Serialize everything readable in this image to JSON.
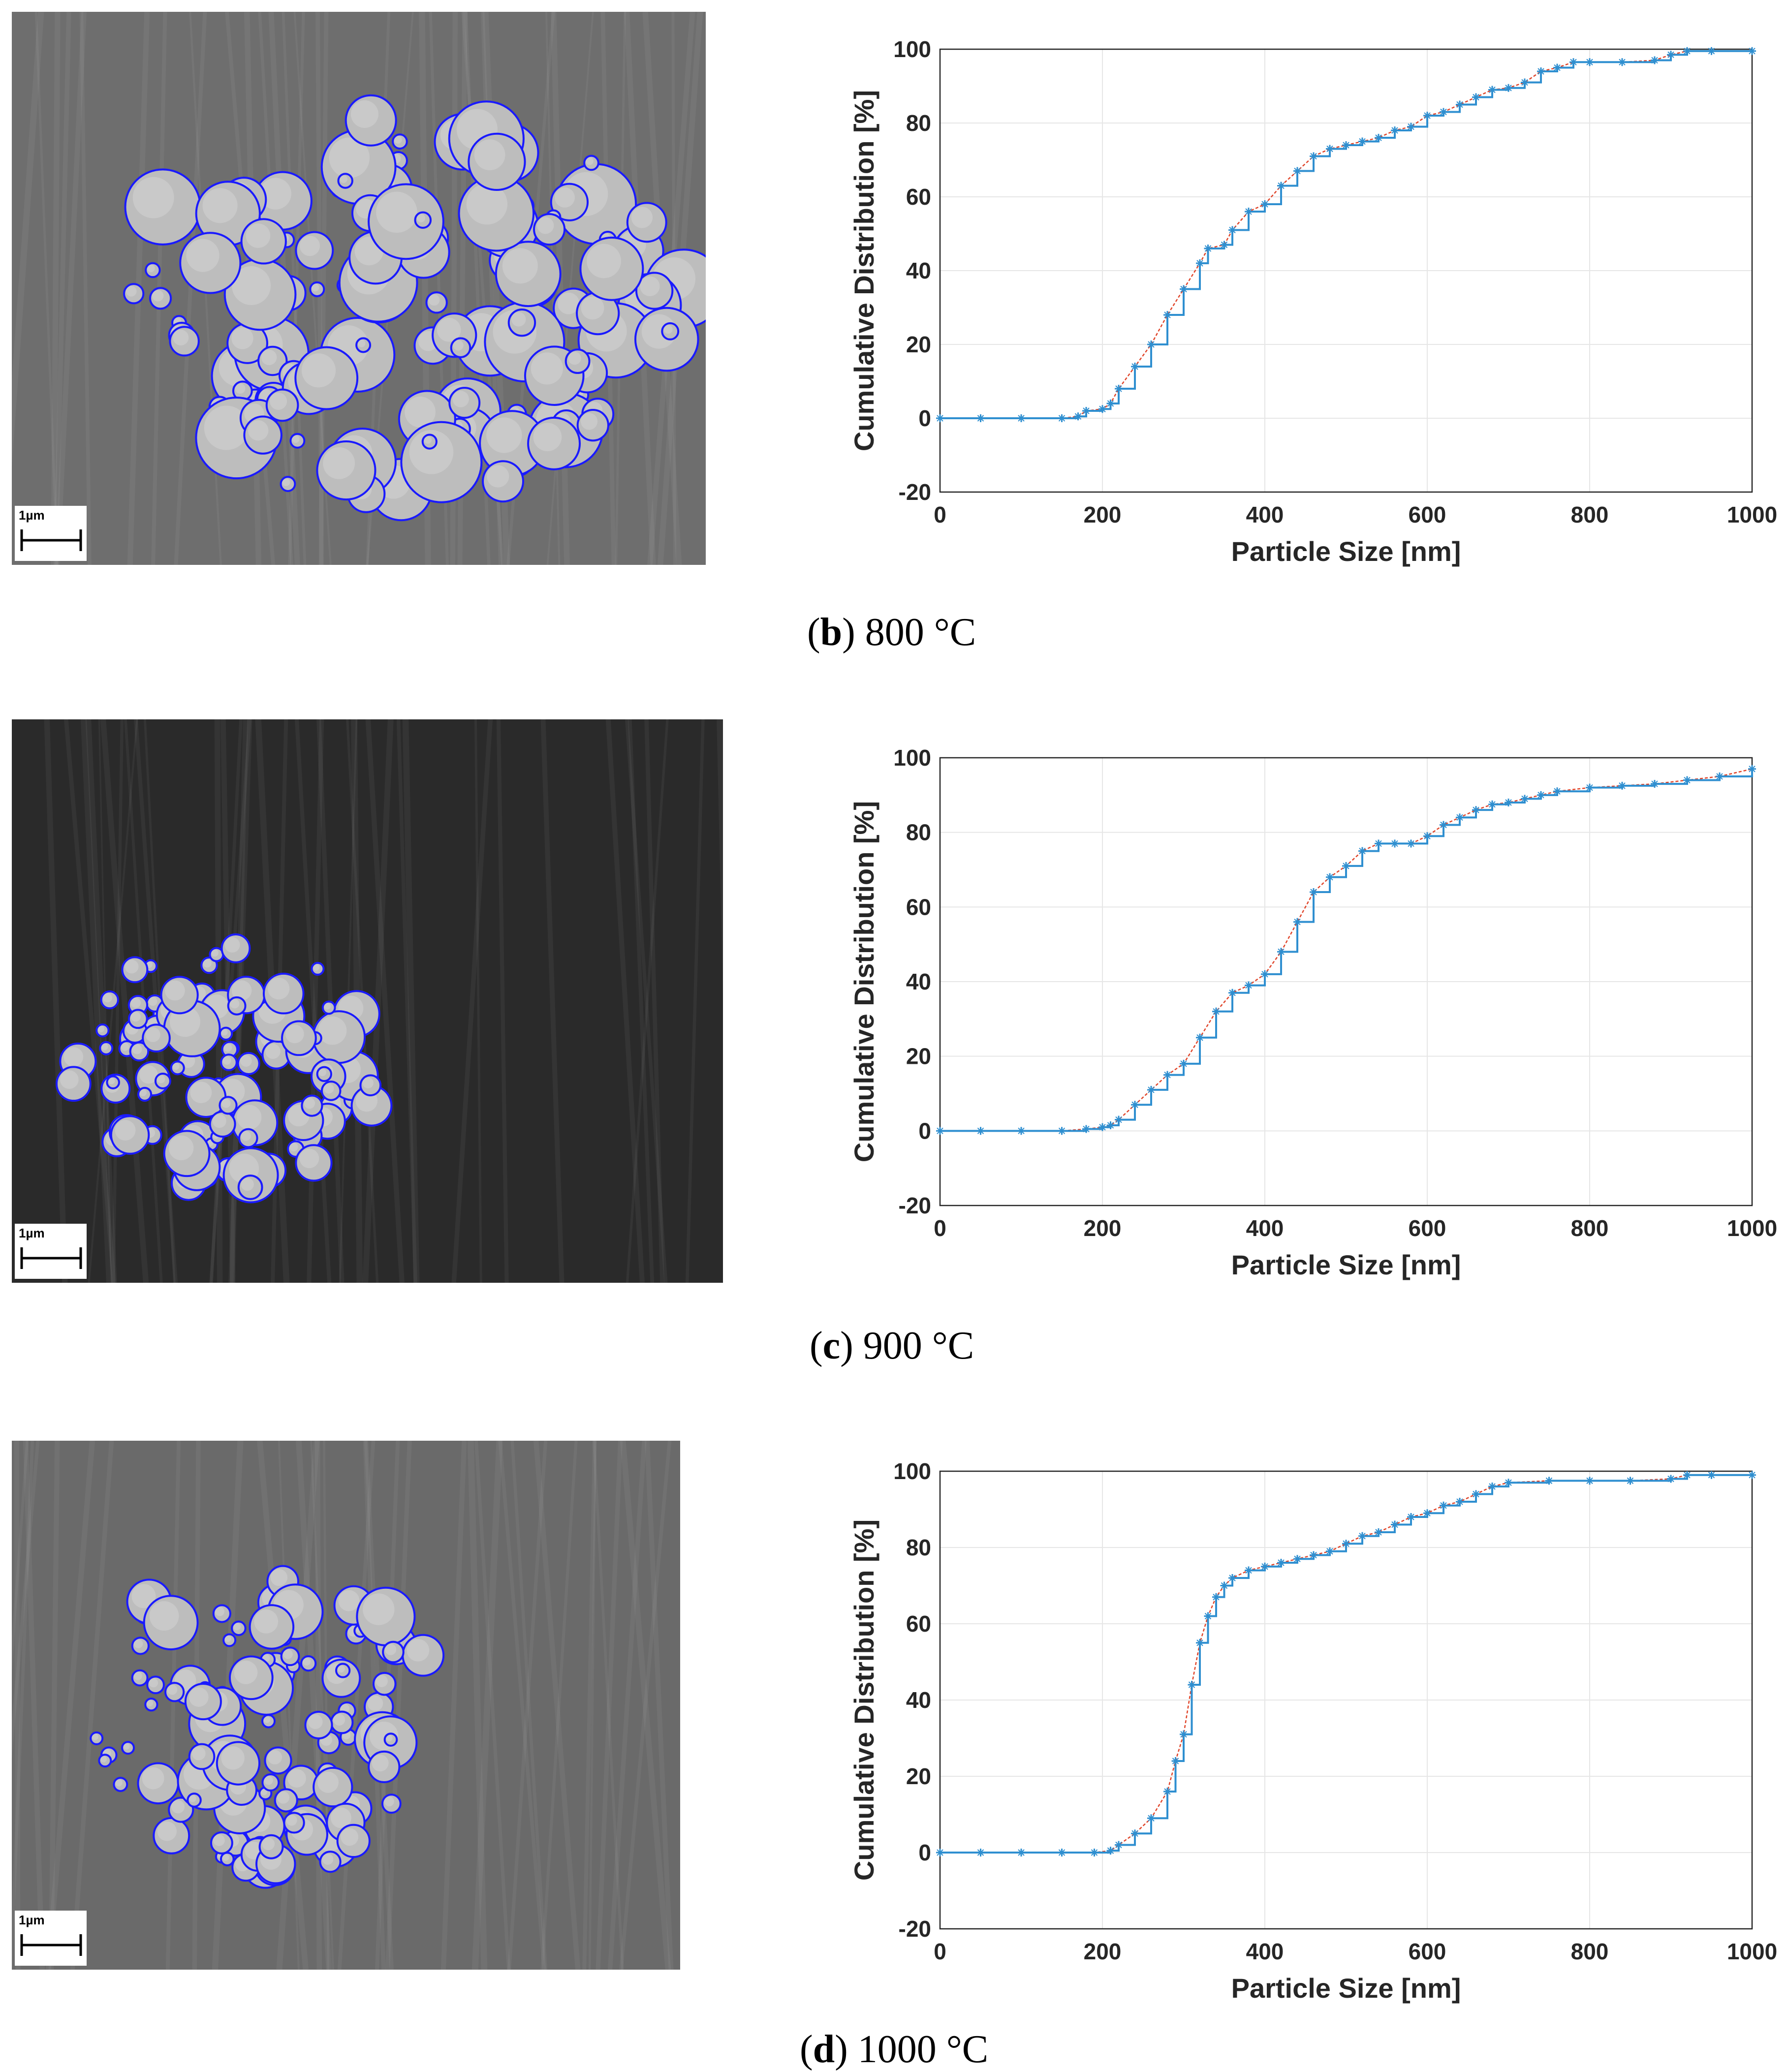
{
  "panels": [
    {
      "id": "b",
      "caption_letter": "b",
      "caption_text": " 800 °C",
      "scale_bar_label": "1µm",
      "sem_background": "#6e6e6e"
    },
    {
      "id": "c",
      "caption_letter": "c",
      "caption_text": " 900 °C",
      "scale_bar_label": "1µm",
      "sem_background": "#2a2a2a"
    },
    {
      "id": "d",
      "caption_letter": "d",
      "caption_text": " 1000 °C",
      "scale_bar_label": "1µm",
      "sem_background": "#6a6a6a"
    }
  ],
  "colors": {
    "detection_circle": "#1a1aff",
    "data_marker": "#2f8fd0",
    "fit_line": "#e0452a",
    "grid": "#e6e6e6"
  },
  "chart_data": [
    {
      "panel": "b",
      "type": "line",
      "xlabel": "Particle Size [nm]",
      "ylabel": "Cumulative Distribution [%]",
      "xlim": [
        0,
        1000
      ],
      "ylim": [
        -20,
        100
      ],
      "xticks": [
        "0",
        "200",
        "400",
        "600",
        "800",
        "1000"
      ],
      "yticks": [
        "-20",
        "0",
        "20",
        "40",
        "60",
        "80",
        "100"
      ],
      "grid": true,
      "x": [
        0,
        50,
        100,
        150,
        170,
        180,
        200,
        210,
        220,
        240,
        260,
        280,
        300,
        320,
        330,
        350,
        360,
        380,
        400,
        420,
        440,
        460,
        480,
        500,
        520,
        540,
        560,
        580,
        600,
        620,
        640,
        660,
        680,
        700,
        720,
        740,
        760,
        780,
        800,
        840,
        880,
        900,
        920,
        950,
        1000
      ],
      "y": [
        0,
        0,
        0,
        0,
        0.5,
        2,
        2.5,
        4,
        8,
        14,
        20,
        28,
        35,
        42,
        46,
        47,
        51,
        56,
        58,
        63,
        67,
        71,
        73,
        74,
        75,
        76,
        78,
        79,
        82,
        83,
        85,
        87,
        89,
        89.5,
        91,
        94,
        95,
        96.5,
        96.5,
        96.5,
        97,
        98.5,
        99.5,
        99.5,
        99.5
      ]
    },
    {
      "panel": "c",
      "type": "line",
      "xlabel": "Particle Size [nm]",
      "ylabel": "Cumulative Distribution [%]",
      "xlim": [
        0,
        1000
      ],
      "ylim": [
        -20,
        100
      ],
      "xticks": [
        "0",
        "200",
        "400",
        "600",
        "800",
        "1000"
      ],
      "yticks": [
        "-20",
        "0",
        "20",
        "40",
        "60",
        "80",
        "100"
      ],
      "grid": true,
      "x": [
        0,
        50,
        100,
        150,
        180,
        200,
        210,
        220,
        240,
        260,
        280,
        300,
        320,
        340,
        360,
        380,
        400,
        420,
        440,
        460,
        480,
        500,
        520,
        540,
        560,
        580,
        600,
        620,
        640,
        660,
        680,
        700,
        720,
        740,
        760,
        800,
        840,
        880,
        920,
        960,
        1000
      ],
      "y": [
        0,
        0,
        0,
        0,
        0.5,
        1,
        1.5,
        3,
        7,
        11,
        15,
        18,
        25,
        32,
        37,
        39,
        42,
        48,
        56,
        64,
        68,
        71,
        75,
        77,
        77,
        77,
        79,
        82,
        84,
        86,
        87.5,
        88,
        89,
        90,
        91,
        92,
        92.5,
        93,
        94,
        95,
        97
      ]
    },
    {
      "panel": "d",
      "type": "line",
      "xlabel": "Particle Size [nm]",
      "ylabel": "Cumulative Distribution [%]",
      "xlim": [
        0,
        1000
      ],
      "ylim": [
        -20,
        100
      ],
      "xticks": [
        "0",
        "200",
        "400",
        "600",
        "800",
        "1000"
      ],
      "yticks": [
        "-20",
        "0",
        "20",
        "40",
        "60",
        "80",
        "100"
      ],
      "grid": true,
      "x": [
        0,
        50,
        100,
        150,
        190,
        210,
        220,
        240,
        260,
        280,
        290,
        300,
        310,
        320,
        330,
        340,
        350,
        360,
        380,
        400,
        420,
        440,
        460,
        480,
        500,
        520,
        540,
        560,
        580,
        600,
        620,
        640,
        660,
        680,
        700,
        750,
        800,
        850,
        900,
        920,
        950,
        1000
      ],
      "y": [
        0,
        0,
        0,
        0,
        0,
        0.5,
        2,
        5,
        9,
        16,
        24,
        31,
        44,
        55,
        62,
        67,
        70,
        72,
        74,
        75,
        76,
        77,
        78,
        79,
        81,
        83,
        84,
        86,
        88,
        89,
        91,
        92,
        94,
        96,
        97,
        97.5,
        97.5,
        97.5,
        98,
        99,
        99,
        99
      ]
    }
  ]
}
